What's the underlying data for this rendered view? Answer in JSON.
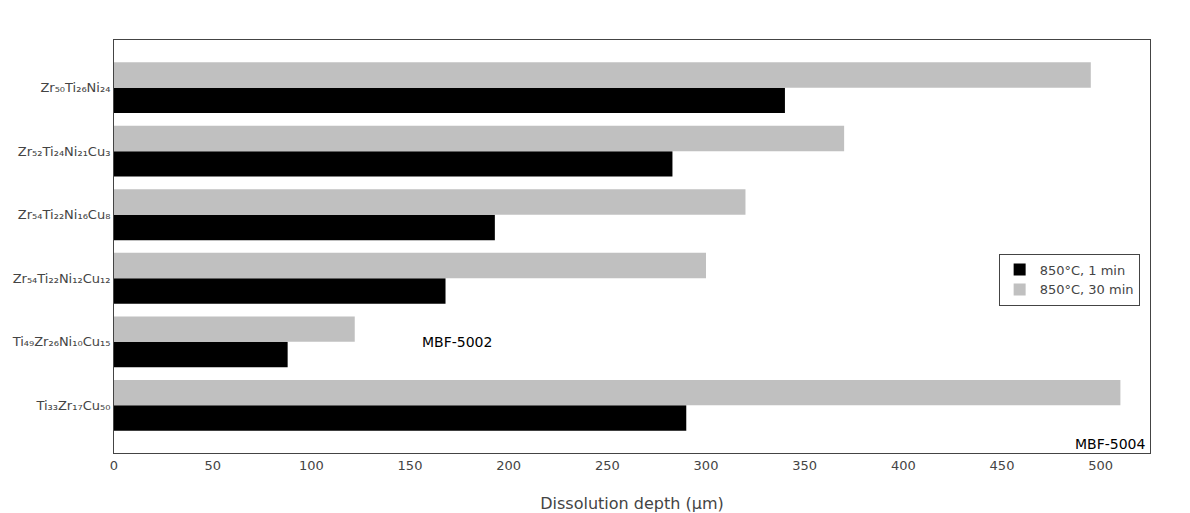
{
  "chart_data": {
    "type": "bar",
    "orientation": "horizontal",
    "categories": [
      "Ti₃₃Zr₁₇Cu₅₀",
      "Ti₄₉Zr₂₆Ni₁₀Cu₁₅",
      "Zr₅₄Ti₂₂Ni₁₂Cu₁₂",
      "Zr₅₄Ti₂₂Ni₁₆Cu₈",
      "Zr₅₂Ti₂₄Ni₂₁Cu₃",
      "Zr₅₀Ti₂₆Ni₂₄"
    ],
    "series": [
      {
        "name": "850°C, 1 min",
        "color": "#000000",
        "values": [
          290,
          88,
          168,
          193,
          283,
          340
        ]
      },
      {
        "name": "850°C, 30 min",
        "color": "#c0c0c0",
        "values": [
          510,
          122,
          300,
          320,
          370,
          495
        ]
      }
    ],
    "xlabel": "Dissolution depth (μm)",
    "xlim": [
      0,
      525
    ],
    "xticks": [
      0,
      50,
      100,
      150,
      200,
      250,
      300,
      350,
      400,
      450,
      500
    ],
    "annotations": [
      "MBF-5002",
      "MBF-5004"
    ],
    "legend": "right",
    "grid": false
  }
}
